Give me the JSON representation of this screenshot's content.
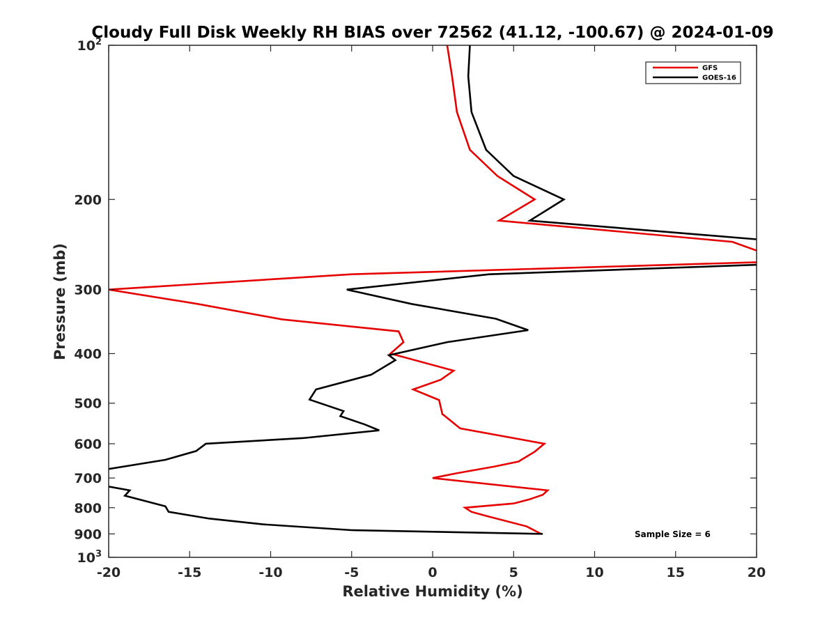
{
  "chart_data": {
    "type": "line",
    "title": "Cloudy Full Disk Weekly RH BIAS over 72562 (41.12, -100.67) @ 2024-01-09",
    "xlabel": "Relative Humidity (%)",
    "ylabel": "Pressure (mb)",
    "xlim": [
      -20,
      20
    ],
    "ylim": [
      100,
      1000
    ],
    "y_scale": "log",
    "y_reversed": true,
    "grid": false,
    "legend_position": "top-right",
    "xticks": [
      -20,
      -15,
      -10,
      -5,
      0,
      5,
      10,
      15,
      20
    ],
    "xtick_labels": [
      "-20",
      "-15",
      "-10",
      "-5",
      "0",
      "5",
      "10",
      "15",
      "20"
    ],
    "yticks": [
      {
        "value": 100,
        "base": "10",
        "exp": "2"
      },
      {
        "value": 200,
        "label": "200"
      },
      {
        "value": 300,
        "label": "300"
      },
      {
        "value": 400,
        "label": "400"
      },
      {
        "value": 500,
        "label": "500"
      },
      {
        "value": 600,
        "label": "600"
      },
      {
        "value": 700,
        "label": "700"
      },
      {
        "value": 800,
        "label": "800"
      },
      {
        "value": 900,
        "label": "900"
      },
      {
        "value": 1000,
        "base": "10",
        "exp": "3"
      }
    ],
    "annotation": "Sample Size = 6",
    "series": [
      {
        "name": "GFS",
        "color": "#e60000",
        "points": [
          {
            "x": 0.9,
            "y": 100
          },
          {
            "x": 1.2,
            "y": 115
          },
          {
            "x": 1.5,
            "y": 135
          },
          {
            "x": 2.3,
            "y": 160
          },
          {
            "x": 4.0,
            "y": 180
          },
          {
            "x": 6.3,
            "y": 200
          },
          {
            "x": 4.1,
            "y": 220
          },
          {
            "x": 18.5,
            "y": 242
          },
          {
            "x": 20.5,
            "y": 255
          },
          {
            "x": 20.5,
            "y": 265
          },
          {
            "x": -5.0,
            "y": 280
          },
          {
            "x": -20.0,
            "y": 300
          },
          {
            "x": -14.5,
            "y": 320
          },
          {
            "x": -9.3,
            "y": 343
          },
          {
            "x": -2.1,
            "y": 362
          },
          {
            "x": -1.8,
            "y": 380
          },
          {
            "x": -2.6,
            "y": 400
          },
          {
            "x": 1.3,
            "y": 432
          },
          {
            "x": 0.5,
            "y": 450
          },
          {
            "x": -1.2,
            "y": 470
          },
          {
            "x": 0.4,
            "y": 493
          },
          {
            "x": 0.6,
            "y": 525
          },
          {
            "x": 1.7,
            "y": 560
          },
          {
            "x": 6.9,
            "y": 600
          },
          {
            "x": 6.3,
            "y": 622
          },
          {
            "x": 5.3,
            "y": 650
          },
          {
            "x": 3.8,
            "y": 665
          },
          {
            "x": 1.5,
            "y": 685
          },
          {
            "x": 0.0,
            "y": 700
          },
          {
            "x": 7.1,
            "y": 740
          },
          {
            "x": 6.8,
            "y": 755
          },
          {
            "x": 6.0,
            "y": 770
          },
          {
            "x": 5.0,
            "y": 785
          },
          {
            "x": 2.0,
            "y": 800
          },
          {
            "x": 2.4,
            "y": 815
          },
          {
            "x": 3.3,
            "y": 830
          },
          {
            "x": 5.8,
            "y": 870
          },
          {
            "x": 6.7,
            "y": 900
          }
        ]
      },
      {
        "name": "GOES-16",
        "color": "#000000",
        "points": [
          {
            "x": 2.3,
            "y": 100
          },
          {
            "x": 2.2,
            "y": 115
          },
          {
            "x": 2.4,
            "y": 135
          },
          {
            "x": 3.3,
            "y": 160
          },
          {
            "x": 5.0,
            "y": 180
          },
          {
            "x": 8.1,
            "y": 200
          },
          {
            "x": 6.0,
            "y": 220
          },
          {
            "x": 20.5,
            "y": 240
          },
          {
            "x": 20.5,
            "y": 268
          },
          {
            "x": 3.5,
            "y": 280
          },
          {
            "x": -5.3,
            "y": 300
          },
          {
            "x": -1.3,
            "y": 320
          },
          {
            "x": 3.9,
            "y": 342
          },
          {
            "x": 5.9,
            "y": 360
          },
          {
            "x": 0.9,
            "y": 380
          },
          {
            "x": -2.7,
            "y": 403
          },
          {
            "x": -2.3,
            "y": 412
          },
          {
            "x": -3.8,
            "y": 440
          },
          {
            "x": -7.2,
            "y": 470
          },
          {
            "x": -7.6,
            "y": 492
          },
          {
            "x": -5.5,
            "y": 518
          },
          {
            "x": -5.7,
            "y": 530
          },
          {
            "x": -4.2,
            "y": 550
          },
          {
            "x": -3.3,
            "y": 565
          },
          {
            "x": -8.0,
            "y": 585
          },
          {
            "x": -14.0,
            "y": 600
          },
          {
            "x": -14.6,
            "y": 620
          },
          {
            "x": -16.5,
            "y": 645
          },
          {
            "x": -21.0,
            "y": 680
          },
          {
            "x": -21.0,
            "y": 718
          },
          {
            "x": -18.7,
            "y": 740
          },
          {
            "x": -19.0,
            "y": 758
          },
          {
            "x": -16.5,
            "y": 795
          },
          {
            "x": -16.3,
            "y": 815
          },
          {
            "x": -13.8,
            "y": 840
          },
          {
            "x": -10.5,
            "y": 862
          },
          {
            "x": -5.0,
            "y": 885
          },
          {
            "x": 6.8,
            "y": 900
          }
        ]
      }
    ]
  }
}
